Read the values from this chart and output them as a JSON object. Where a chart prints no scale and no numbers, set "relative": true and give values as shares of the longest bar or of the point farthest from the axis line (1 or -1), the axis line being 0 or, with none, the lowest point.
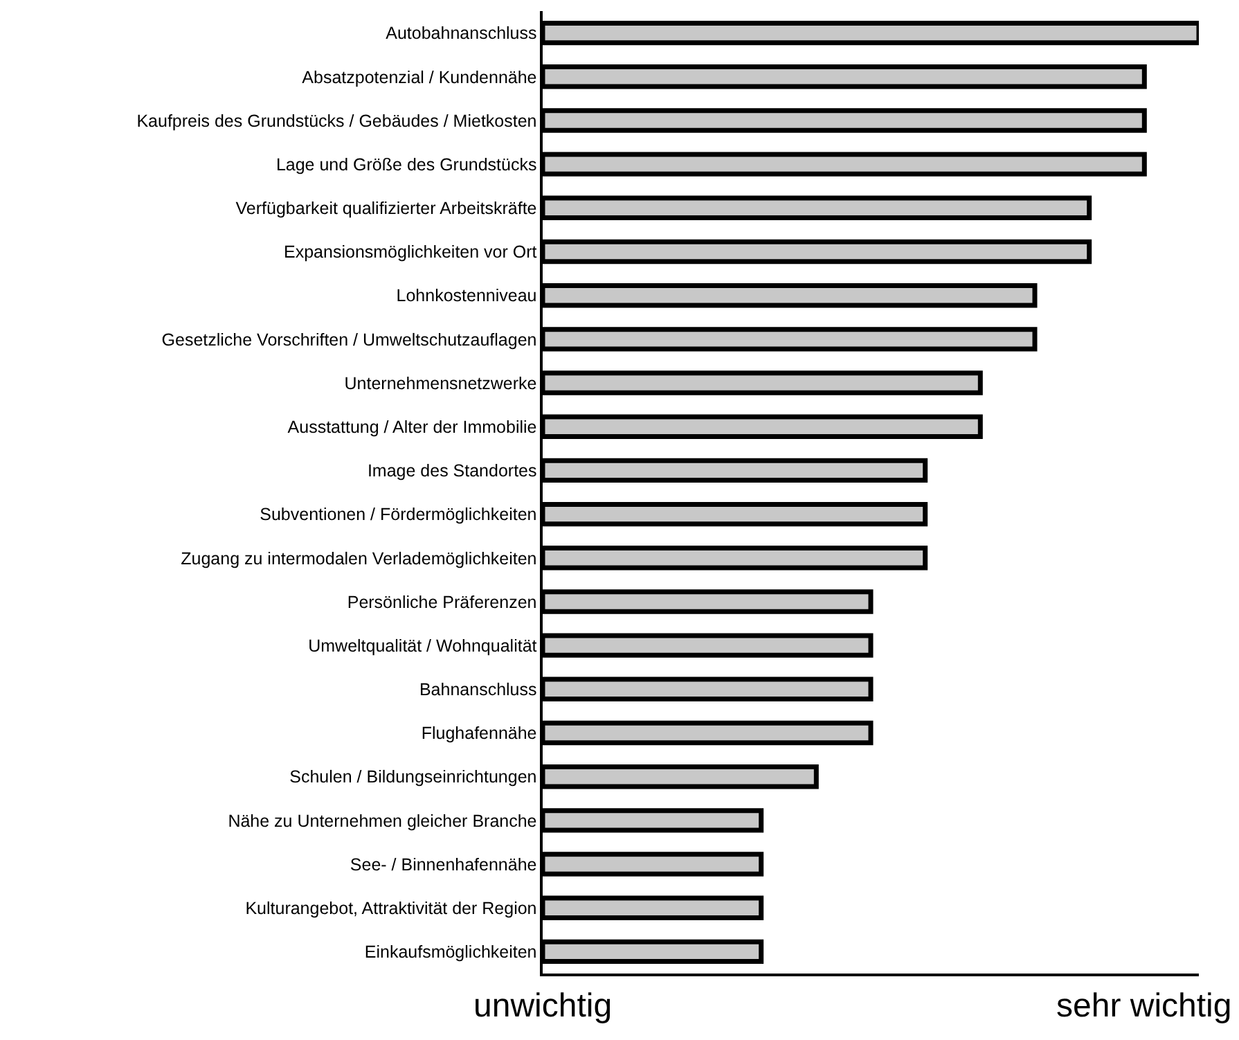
{
  "chart_data": {
    "type": "bar",
    "orientation": "horizontal",
    "relative": true,
    "categories": [
      "Autobahnanschluss",
      "Absatzpotenzial / Kundennähe",
      "Kaufpreis des Grundstücks / Gebäudes / Mietkosten",
      "Lage und Größe des Grundstücks",
      "Verfügbarkeit qualifizierter Arbeitskräfte",
      "Expansionsmöglichkeiten vor Ort",
      "Lohnkostenniveau",
      "Gesetzliche Vorschriften / Umweltschutzauflagen",
      "Unternehmensnetzwerke",
      "Ausstattung / Alter der Immobilie",
      "Image des Standortes",
      "Subventionen / Fördermöglichkeiten",
      "Zugang zu intermodalen Verlademöglichkeiten",
      "Persönliche Präferenzen",
      "Umweltqualität / Wohnqualität",
      "Bahnanschluss",
      "Flughafennähe",
      "Schulen / Bildungseinrichtungen",
      "Nähe zu Unternehmen gleicher Branche",
      "See- / Binnenhafennähe",
      "Kulturangebot, Attraktivität der Region",
      "Einkaufsmöglichkeiten"
    ],
    "values": [
      1,
      0.917,
      0.917,
      0.917,
      0.833,
      0.833,
      0.75,
      0.75,
      0.667,
      0.667,
      0.583,
      0.583,
      0.583,
      0.5,
      0.5,
      0.5,
      0.5,
      0.417,
      0.333,
      0.333,
      0.333,
      0.333
    ],
    "color": "#c8c8c8",
    "annotations": [
      "unwichtig",
      "sehr wichtig"
    ]
  }
}
